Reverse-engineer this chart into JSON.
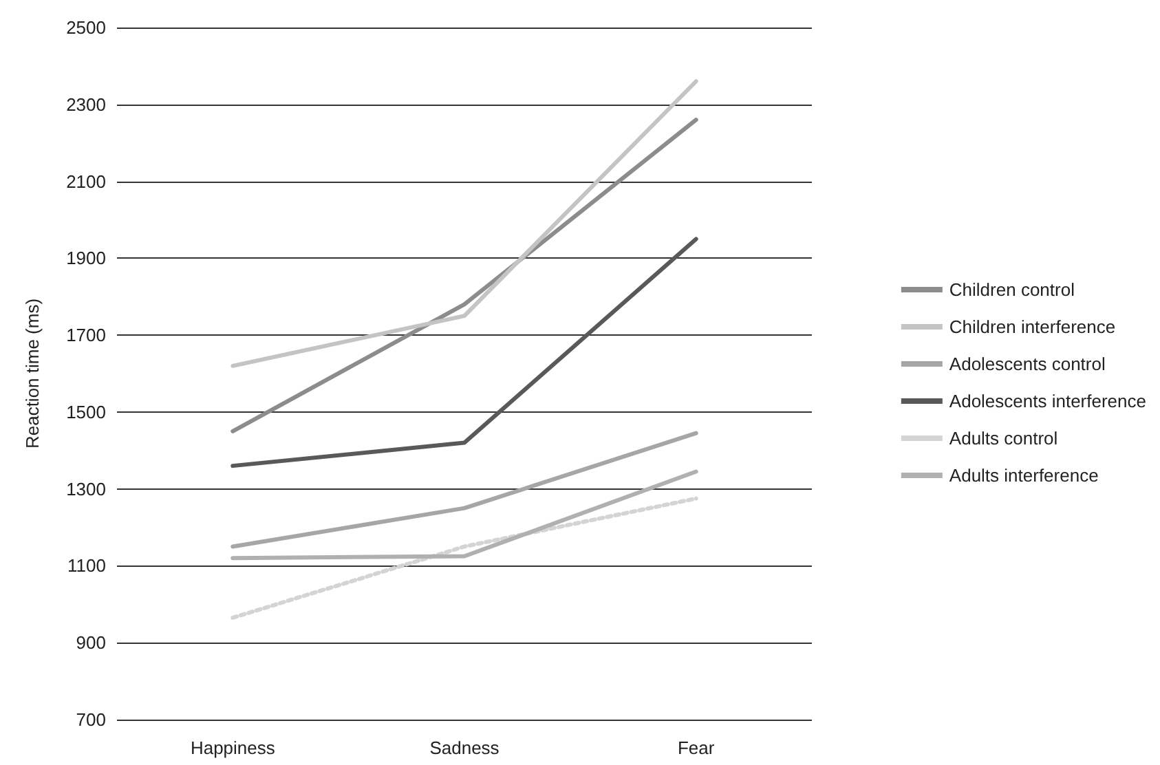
{
  "chart_data": {
    "type": "line",
    "ylabel": "Reaction time (ms)",
    "categories": [
      "Happiness",
      "Sadness",
      "Fear"
    ],
    "series": [
      {
        "name": "Children control",
        "color": "#8c8c8c",
        "values": [
          1450,
          1780,
          2260
        ]
      },
      {
        "name": "Children interference",
        "color": "#c4c4c4",
        "values": [
          1620,
          1750,
          2360
        ]
      },
      {
        "name": "Adolescents control",
        "color": "#a6a6a6",
        "values": [
          1150,
          1250,
          1445
        ]
      },
      {
        "name": "Adolescents interference",
        "color": "#595959",
        "values": [
          1360,
          1420,
          1950
        ]
      },
      {
        "name": "Adults control",
        "color": "#d4d4d4",
        "line_style": "dotted",
        "values": [
          965,
          1150,
          1275
        ]
      },
      {
        "name": "Adults interference",
        "color": "#b0b0b0",
        "values": [
          1120,
          1125,
          1345
        ]
      }
    ],
    "ylim": [
      700,
      2500
    ],
    "yticks": [
      700,
      900,
      1100,
      1300,
      1500,
      1700,
      1900,
      2100,
      2300,
      2500
    ],
    "grid": "y",
    "legend": "right",
    "marker": "none",
    "line_style": "solid"
  }
}
